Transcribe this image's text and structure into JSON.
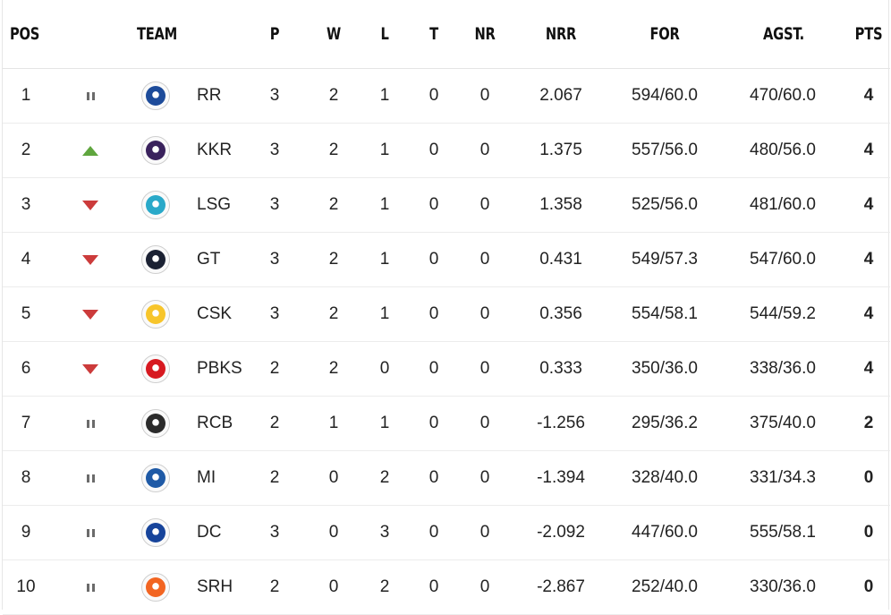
{
  "headers": {
    "pos": "POS",
    "team": "TEAM",
    "p": "P",
    "w": "W",
    "l": "L",
    "t": "T",
    "nr": "NR",
    "nrr": "NRR",
    "for": "FOR",
    "agst": "AGST.",
    "pts": "PTS"
  },
  "colors": {
    "up": "#5fa63e",
    "down": "#cc3b3b",
    "same": "#6b6b6b"
  },
  "rows": [
    {
      "pos": "1",
      "trend": "same",
      "logo": "rr-logo-icon",
      "logo_color": "#1d4b9a",
      "team": "RR",
      "p": "3",
      "w": "2",
      "l": "1",
      "t": "0",
      "nr": "0",
      "nrr": "2.067",
      "for": "594/60.0",
      "agst": "470/60.0",
      "pts": "4"
    },
    {
      "pos": "2",
      "trend": "up",
      "logo": "kkr-logo-icon",
      "logo_color": "#3a225d",
      "team": "KKR",
      "p": "3",
      "w": "2",
      "l": "1",
      "t": "0",
      "nr": "0",
      "nrr": "1.375",
      "for": "557/56.0",
      "agst": "480/56.0",
      "pts": "4"
    },
    {
      "pos": "3",
      "trend": "down",
      "logo": "lsg-logo-icon",
      "logo_color": "#2aa9c9",
      "team": "LSG",
      "p": "3",
      "w": "2",
      "l": "1",
      "t": "0",
      "nr": "0",
      "nrr": "1.358",
      "for": "525/56.0",
      "agst": "481/60.0",
      "pts": "4"
    },
    {
      "pos": "4",
      "trend": "down",
      "logo": "gt-logo-icon",
      "logo_color": "#1b2133",
      "team": "GT",
      "p": "3",
      "w": "2",
      "l": "1",
      "t": "0",
      "nr": "0",
      "nrr": "0.431",
      "for": "549/57.3",
      "agst": "547/60.0",
      "pts": "4"
    },
    {
      "pos": "5",
      "trend": "down",
      "logo": "csk-logo-icon",
      "logo_color": "#f7c52b",
      "team": "CSK",
      "p": "3",
      "w": "2",
      "l": "1",
      "t": "0",
      "nr": "0",
      "nrr": "0.356",
      "for": "554/58.1",
      "agst": "544/59.2",
      "pts": "4"
    },
    {
      "pos": "6",
      "trend": "down",
      "logo": "pbks-logo-icon",
      "logo_color": "#d71920",
      "team": "PBKS",
      "p": "2",
      "w": "2",
      "l": "0",
      "t": "0",
      "nr": "0",
      "nrr": "0.333",
      "for": "350/36.0",
      "agst": "338/36.0",
      "pts": "4"
    },
    {
      "pos": "7",
      "trend": "same",
      "logo": "rcb-logo-icon",
      "logo_color": "#2b2b2b",
      "team": "RCB",
      "p": "2",
      "w": "1",
      "l": "1",
      "t": "0",
      "nr": "0",
      "nrr": "-1.256",
      "for": "295/36.2",
      "agst": "375/40.0",
      "pts": "2"
    },
    {
      "pos": "8",
      "trend": "same",
      "logo": "mi-logo-icon",
      "logo_color": "#1f5aa6",
      "team": "MI",
      "p": "2",
      "w": "0",
      "l": "2",
      "t": "0",
      "nr": "0",
      "nrr": "-1.394",
      "for": "328/40.0",
      "agst": "331/34.3",
      "pts": "0"
    },
    {
      "pos": "9",
      "trend": "same",
      "logo": "dc-logo-icon",
      "logo_color": "#17449b",
      "team": "DC",
      "p": "3",
      "w": "0",
      "l": "3",
      "t": "0",
      "nr": "0",
      "nrr": "-2.092",
      "for": "447/60.0",
      "agst": "555/58.1",
      "pts": "0"
    },
    {
      "pos": "10",
      "trend": "same",
      "logo": "srh-logo-icon",
      "logo_color": "#f26522",
      "team": "SRH",
      "p": "2",
      "w": "0",
      "l": "2",
      "t": "0",
      "nr": "0",
      "nrr": "-2.867",
      "for": "252/40.0",
      "agst": "330/36.0",
      "pts": "0"
    }
  ]
}
